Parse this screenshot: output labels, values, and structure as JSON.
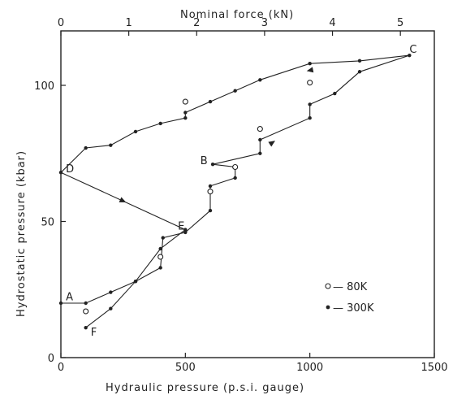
{
  "chart_data": {
    "type": "line",
    "title": "",
    "xlabel": "Hydraulic pressure    (p.s.i. gauge)",
    "ylabel": "Hydrostatic pressure    (kbar)",
    "x2label": "Nominal force    (kN)",
    "xlim": [
      0,
      1500
    ],
    "ylim": [
      0,
      120
    ],
    "x2lim": [
      0,
      5.5
    ],
    "xticks": [
      0,
      500,
      1000,
      1500
    ],
    "yticks": [
      0,
      50,
      100
    ],
    "x2ticks": [
      0,
      1,
      2,
      3,
      4,
      5
    ],
    "grid": false,
    "legend_position": "right",
    "series": [
      {
        "name": "300K",
        "marker": "filled",
        "values": [
          [
            0,
            20
          ],
          [
            100,
            20
          ],
          [
            200,
            24
          ],
          [
            300,
            28
          ],
          [
            400,
            33
          ],
          [
            410,
            44
          ],
          [
            500,
            46
          ],
          [
            600,
            54
          ],
          [
            600,
            63
          ],
          [
            700,
            66
          ],
          [
            700,
            70
          ],
          [
            610,
            71
          ],
          [
            800,
            75
          ],
          [
            800,
            80
          ],
          [
            1000,
            88
          ],
          [
            1000,
            93
          ],
          [
            1100,
            97
          ],
          [
            1200,
            105
          ],
          [
            1400,
            111
          ],
          [
            1200,
            109
          ],
          [
            1000,
            108
          ],
          [
            800,
            102
          ],
          [
            700,
            98
          ],
          [
            600,
            94
          ],
          [
            500,
            90
          ],
          [
            500,
            88
          ],
          [
            400,
            86
          ],
          [
            300,
            83
          ],
          [
            200,
            78
          ],
          [
            100,
            77
          ],
          [
            0,
            68
          ],
          [
            500,
            47
          ],
          [
            400,
            40
          ],
          [
            300,
            28
          ],
          [
            200,
            18
          ],
          [
            100,
            11
          ]
        ]
      },
      {
        "name": "80K",
        "marker": "open",
        "values": [
          [
            100,
            17
          ],
          [
            400,
            37
          ],
          [
            600,
            61
          ],
          [
            700,
            70
          ],
          [
            800,
            84
          ],
          [
            1000,
            101
          ],
          [
            500,
            94
          ]
        ]
      }
    ],
    "point_labels": [
      {
        "text": "A",
        "x": 20,
        "y": 21
      },
      {
        "text": "B",
        "x": 560,
        "y": 71
      },
      {
        "text": "C",
        "x": 1400,
        "y": 112
      },
      {
        "text": "D",
        "x": 20,
        "y": 68
      },
      {
        "text": "E",
        "x": 470,
        "y": 47
      },
      {
        "text": "F",
        "x": 120,
        "y": 8
      }
    ],
    "legend": [
      {
        "marker": "open",
        "label": "— 80K"
      },
      {
        "marker": "filled",
        "label": "— 300K"
      }
    ]
  },
  "colors": {
    "ink": "#222222",
    "background": "#ffffff"
  }
}
